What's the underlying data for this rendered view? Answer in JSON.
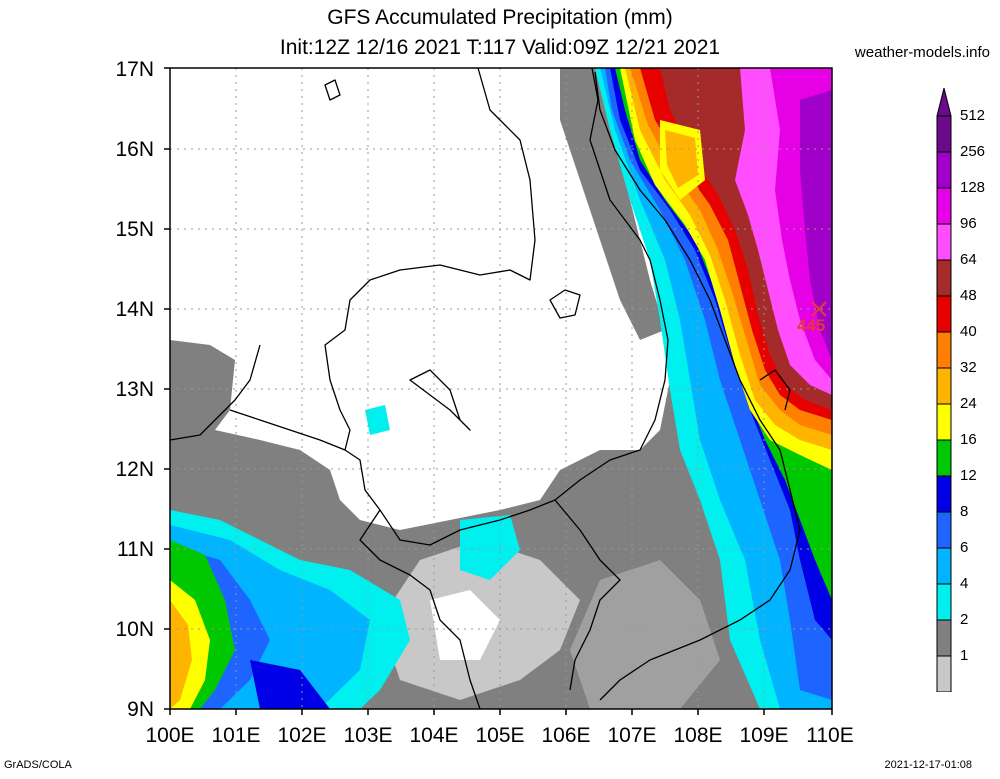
{
  "title": {
    "line1": "GFS Accumulated Precipitation (mm)",
    "line2": "Init:12Z 12/16 2021 T:117 Valid:09Z 12/21 2021"
  },
  "source": "weather-models.info",
  "credit": "GrADS/COLA",
  "timestamp": "2021-12-17-01:08",
  "axes": {
    "lat_labels": [
      "17N",
      "16N",
      "15N",
      "14N",
      "13N",
      "12N",
      "11N",
      "10N",
      "9N"
    ],
    "lon_labels": [
      "100E",
      "101E",
      "102E",
      "103E",
      "104E",
      "105E",
      "106E",
      "107E",
      "108E",
      "109E",
      "110E"
    ],
    "lat_range": [
      9,
      17
    ],
    "lon_range": [
      100,
      110
    ]
  },
  "legend": {
    "levels": [
      "512",
      "256",
      "128",
      "96",
      "64",
      "48",
      "40",
      "32",
      "24",
      "16",
      "12",
      "8",
      "6",
      "4",
      "2",
      "1"
    ],
    "colors": [
      "#6b0a8a",
      "#a000c8",
      "#e600e6",
      "#ff4dff",
      "#a52a2a",
      "#e60000",
      "#ff7f00",
      "#ffb400",
      "#ffff00",
      "#00c800",
      "#0000e6",
      "#1e64ff",
      "#00b4ff",
      "#00f0f0",
      "#808080",
      "#c8c8c8"
    ]
  },
  "max_marker": {
    "value": "445",
    "lon": 109.8,
    "lat": 14.0
  }
}
